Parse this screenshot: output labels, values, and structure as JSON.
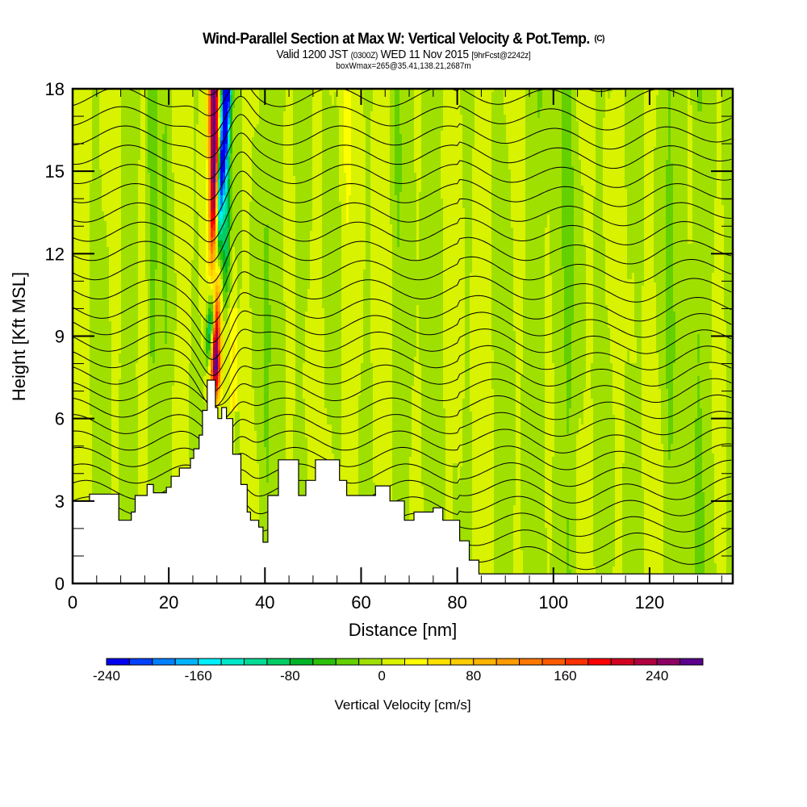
{
  "header": {
    "title": "Wind-Parallel Section at Max W: Vertical Velocity & Pot.Temp.",
    "copyright": "(C)",
    "valid_prefix": "Valid 1200 JST",
    "valid_utc": "(0300Z)",
    "valid_date": "WED 11 Nov 2015",
    "forecast": "[9hrFcst@2242z]",
    "boxmax": "boxWmax=265@35.41,138.21,2687m"
  },
  "chart_data": {
    "type": "heatmap",
    "title": "Wind-Parallel Section at Max W: Vertical Velocity & Pot.Temp.",
    "xlabel": "Distance [nm]",
    "ylabel": "Height [Kft MSL]",
    "xlim": [
      0,
      137.3
    ],
    "ylim": [
      0,
      18
    ],
    "x_ticks": [
      0,
      20,
      40,
      60,
      80,
      100,
      120
    ],
    "x_tick_labels": [
      "0",
      "20",
      "40",
      "60",
      "80",
      "100",
      "120"
    ],
    "x_minor_step": 5,
    "y_ticks": [
      0,
      3,
      6,
      9,
      12,
      15,
      18
    ],
    "y_tick_labels": [
      "0",
      "3",
      "6",
      "9",
      "12",
      "15",
      "18"
    ],
    "y_minor_step": 1,
    "colorbar": {
      "label": "Vertical Velocity [cm/s]",
      "min": -240,
      "max": 280,
      "step": 20,
      "tick_values": [
        -240,
        -160,
        -80,
        0,
        80,
        160,
        240
      ],
      "tick_labels": [
        "-240",
        "-160",
        "-80",
        "0",
        "80",
        "160",
        "240"
      ],
      "colors": [
        "#0000f0",
        "#0040ff",
        "#0080ff",
        "#00b4ff",
        "#00f0ff",
        "#00e8c8",
        "#00dc96",
        "#00cc64",
        "#00b428",
        "#2cc00c",
        "#64d000",
        "#a0e000",
        "#d8f200",
        "#ffff00",
        "#ffe000",
        "#ffcc00",
        "#ffb400",
        "#ff9c00",
        "#ff7800",
        "#ff5a00",
        "#ff3000",
        "#ff0000",
        "#d20020",
        "#b00040",
        "#8c0064",
        "#5a008c"
      ]
    },
    "updraft_max_cm_s": 265,
    "updraft_center_nm": 30,
    "terrain_kft": [
      [
        0,
        3.0
      ],
      [
        3.5,
        3.0
      ],
      [
        3.5,
        3.25
      ],
      [
        9.6,
        3.25
      ],
      [
        9.6,
        2.3
      ],
      [
        12.2,
        2.3
      ],
      [
        12.2,
        2.6
      ],
      [
        13,
        2.6
      ],
      [
        13,
        3.2
      ],
      [
        15.5,
        3.2
      ],
      [
        15.5,
        3.6
      ],
      [
        16.8,
        3.6
      ],
      [
        16.8,
        3.3
      ],
      [
        19.5,
        3.3
      ],
      [
        19.5,
        3.5
      ],
      [
        20.5,
        3.5
      ],
      [
        20.5,
        3.9
      ],
      [
        22.2,
        3.9
      ],
      [
        22.2,
        4.2
      ],
      [
        24.5,
        4.2
      ],
      [
        24.5,
        4.55
      ],
      [
        25.2,
        4.55
      ],
      [
        25.2,
        4.9
      ],
      [
        26.3,
        4.9
      ],
      [
        26.3,
        5.4
      ],
      [
        27,
        5.4
      ],
      [
        27,
        6.3
      ],
      [
        28,
        6.3
      ],
      [
        28,
        7.4
      ],
      [
        29.7,
        7.4
      ],
      [
        29.7,
        6.4
      ],
      [
        30.2,
        6.4
      ],
      [
        30.2,
        6.0
      ],
      [
        31,
        6.0
      ],
      [
        31,
        6.4
      ],
      [
        32,
        6.4
      ],
      [
        32,
        6.0
      ],
      [
        33.3,
        6.0
      ],
      [
        33.3,
        4.7
      ],
      [
        35,
        4.7
      ],
      [
        35,
        3.6
      ],
      [
        36.3,
        3.6
      ],
      [
        36.3,
        2.6
      ],
      [
        37,
        2.6
      ],
      [
        37,
        2.3
      ],
      [
        38.7,
        2.3
      ],
      [
        38.7,
        2.05
      ],
      [
        39.6,
        2.05
      ],
      [
        39.6,
        1.5
      ],
      [
        40.6,
        1.5
      ],
      [
        40.6,
        3.2
      ],
      [
        42.8,
        3.2
      ],
      [
        42.8,
        4.5
      ],
      [
        47,
        4.5
      ],
      [
        47,
        3.2
      ],
      [
        48.5,
        3.2
      ],
      [
        48.5,
        3.75
      ],
      [
        50.5,
        3.75
      ],
      [
        50.5,
        4.5
      ],
      [
        55.5,
        4.5
      ],
      [
        55.5,
        3.75
      ],
      [
        57,
        3.75
      ],
      [
        57,
        3.2
      ],
      [
        63,
        3.2
      ],
      [
        63,
        3.55
      ],
      [
        66,
        3.55
      ],
      [
        66,
        3.0
      ],
      [
        69,
        3.0
      ],
      [
        69,
        2.3
      ],
      [
        71,
        2.3
      ],
      [
        71,
        2.6
      ],
      [
        75,
        2.6
      ],
      [
        75,
        2.75
      ],
      [
        77,
        2.75
      ],
      [
        77,
        2.3
      ],
      [
        80.5,
        2.3
      ],
      [
        80.5,
        1.55
      ],
      [
        82.5,
        1.55
      ],
      [
        82.5,
        0.85
      ],
      [
        84.5,
        0.85
      ],
      [
        84.5,
        0.35
      ],
      [
        137.3,
        0.35
      ]
    ],
    "theta_contour_count": 30,
    "contour_color": "#000000"
  }
}
